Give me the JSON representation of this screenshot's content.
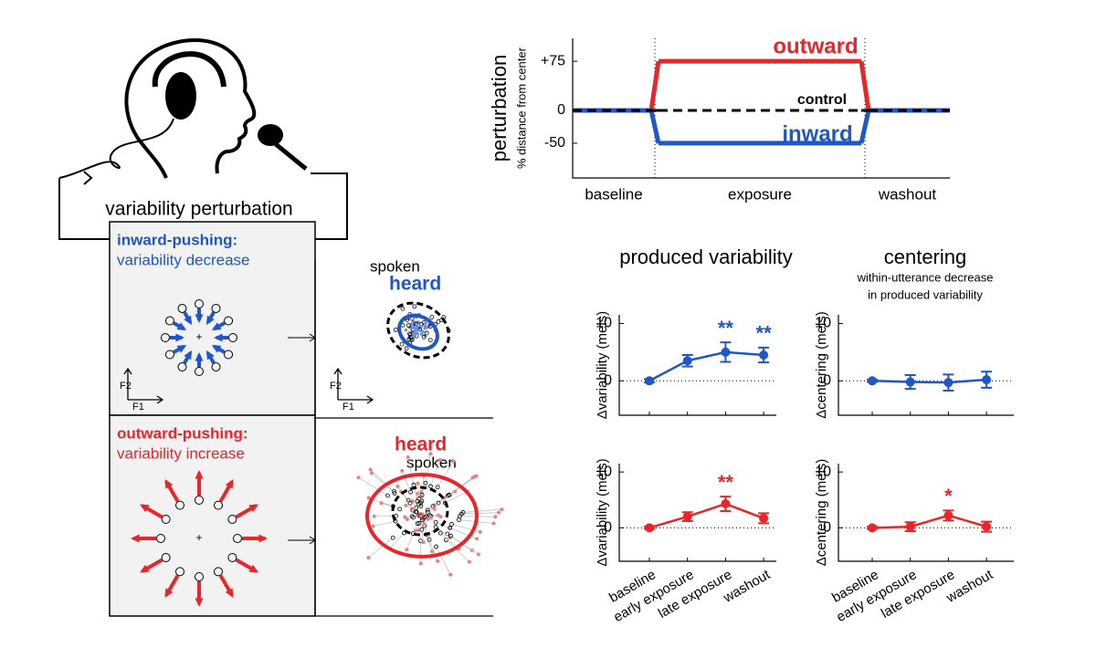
{
  "diagram": {
    "loop_label": "variability perturbation",
    "inward": {
      "title": "inward-pushing:",
      "subtitle": "variability decrease",
      "spoken": "spoken",
      "heard": "heard"
    },
    "outward": {
      "title": "outward-pushing:",
      "subtitle": "variability increase",
      "spoken": "spoken",
      "heard": "heard"
    },
    "axes": {
      "f1": "F1",
      "f2": "F2"
    }
  },
  "chart_data": [
    {
      "type": "line",
      "drawstyle": "steps",
      "ylabel": "perturbation",
      "ylabel2": "% distance from center",
      "categories": [
        "baseline",
        "exposure",
        "washout"
      ],
      "series": [
        {
          "name": "outward",
          "color": "#e8262a",
          "values": [
            0,
            75,
            0
          ]
        },
        {
          "name": "inward",
          "color": "#1f56c8",
          "values": [
            0,
            -50,
            0
          ]
        },
        {
          "name": "control",
          "color": "#000000",
          "linestyle": "dashed",
          "values": [
            0,
            0,
            0
          ]
        }
      ],
      "ylim": [
        -103,
        110
      ],
      "yticks": [
        {
          "value": 75,
          "label": "+75"
        },
        0,
        -50
      ]
    },
    {
      "type": "line",
      "title": "produced variability",
      "ylabel": "Δvariability (mels)",
      "categories": [
        null,
        null,
        null,
        null
      ],
      "series": [
        {
          "color": "#1f56c8",
          "values": [
            0,
            3.5,
            5,
            4.5
          ],
          "errors": [
            0.3,
            1.0,
            1.7,
            1.3
          ],
          "significance": [
            null,
            null,
            "**",
            "**"
          ]
        }
      ],
      "ylim": [
        -6,
        11.5
      ],
      "yticks": [
        0,
        10
      ],
      "zero_line": "dotted"
    },
    {
      "type": "line",
      "title": "centering",
      "subtitle": [
        "within-utterance decrease",
        "in produced variability"
      ],
      "ylabel": "Δcentering (mels)",
      "categories": [
        null,
        null,
        null,
        null
      ],
      "series": [
        {
          "color": "#1f56c8",
          "values": [
            0,
            -0.2,
            -0.3,
            0.2
          ],
          "errors": [
            0.2,
            1.2,
            1.4,
            1.4
          ],
          "significance": [
            null,
            null,
            null,
            null
          ]
        }
      ],
      "ylim": [
        -6,
        11.5
      ],
      "yticks": [
        0,
        10
      ],
      "zero_line": "dotted"
    },
    {
      "type": "line",
      "ylabel": "Δvariability (mels)",
      "categories": [
        "baseline",
        "early exposure",
        "late exposure",
        "washout"
      ],
      "series": [
        {
          "color": "#e8262a",
          "values": [
            0,
            2,
            4.3,
            1.7
          ],
          "errors": [
            0.2,
            0.8,
            1.3,
            0.9
          ],
          "significance": [
            null,
            null,
            "**",
            null
          ]
        }
      ],
      "ylim": [
        -6,
        11.5
      ],
      "yticks": [
        0,
        10
      ],
      "zero_line": "dotted"
    },
    {
      "type": "line",
      "ylabel": "Δcentering (mels)",
      "categories": [
        "baseline",
        "early exposure",
        "late exposure",
        "washout"
      ],
      "series": [
        {
          "color": "#e8262a",
          "values": [
            0,
            0.2,
            2.2,
            0.2
          ],
          "errors": [
            0.2,
            0.8,
            0.9,
            0.9
          ],
          "significance": [
            null,
            null,
            "*",
            null
          ]
        }
      ],
      "ylim": [
        -6,
        11.5
      ],
      "yticks": [
        0,
        10
      ],
      "zero_line": "dotted"
    }
  ]
}
